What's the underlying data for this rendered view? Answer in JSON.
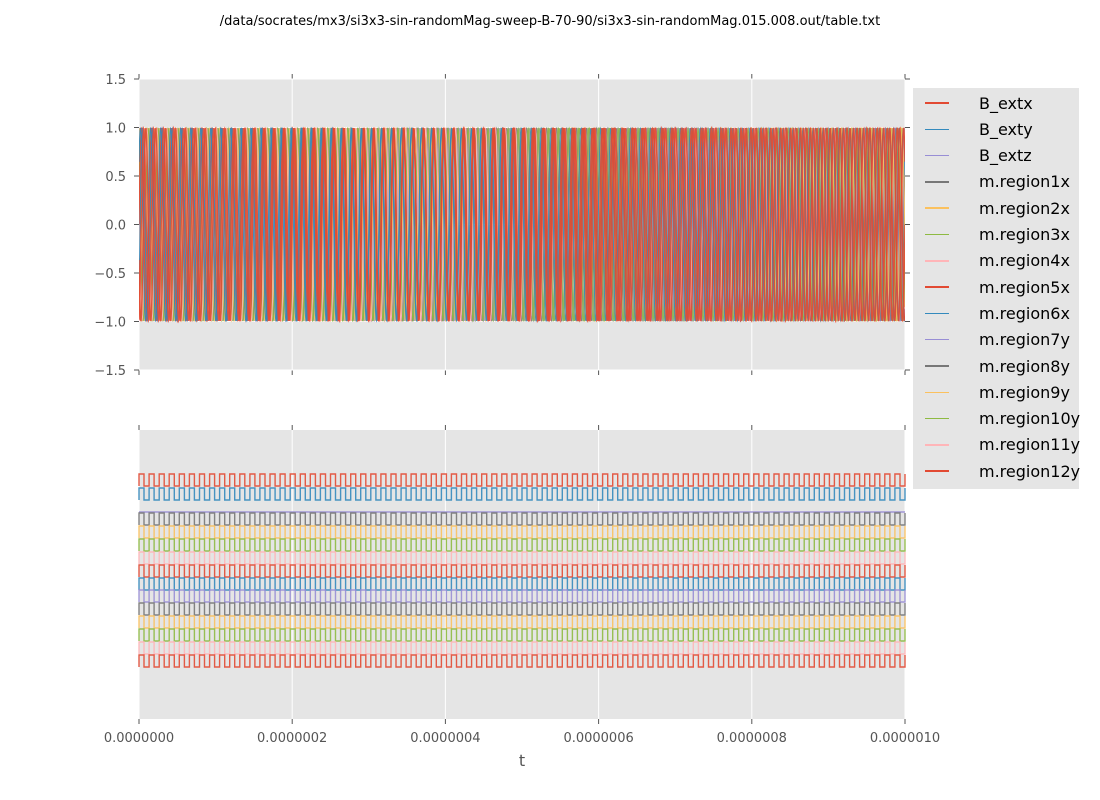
{
  "chart_data": [
    {
      "type": "line",
      "title": "/data/socrates/mx3/si3x3-sin-randomMag-sweep-B-70-90/si3x3-sin-randomMag.015.008.out/table.txt",
      "xlabel": "t",
      "ylabel": "",
      "xlim": [
        0,
        1e-06
      ],
      "ylim": [
        -1.5,
        1.5
      ],
      "yticks": [
        "1.5",
        "1.0",
        "0.5",
        "0.0",
        "−0.5",
        "−1.0",
        "−1.5"
      ],
      "ytick_values": [
        1.5,
        1.0,
        0.5,
        0.0,
        -0.5,
        -1.0,
        -1.5
      ],
      "grid": true,
      "legend_placement": "outside-right",
      "approx_cycles_over_range": 76,
      "amplitude": 1.0,
      "series": [
        {
          "name": "B_extx",
          "color": "#E24A33"
        },
        {
          "name": "B_exty",
          "color": "#348ABD"
        },
        {
          "name": "B_extz",
          "color": "#988ED5"
        },
        {
          "name": "m.region1x",
          "color": "#777777"
        },
        {
          "name": "m.region2x",
          "color": "#FBC15E"
        },
        {
          "name": "m.region3x",
          "color": "#8EBA42"
        },
        {
          "name": "m.region4x",
          "color": "#FFB5B8"
        },
        {
          "name": "m.region5x",
          "color": "#E24A33"
        },
        {
          "name": "m.region6x",
          "color": "#348ABD"
        },
        {
          "name": "m.region7y",
          "color": "#988ED5"
        },
        {
          "name": "m.region8y",
          "color": "#777777"
        },
        {
          "name": "m.region9y",
          "color": "#FBC15E"
        },
        {
          "name": "m.region10y",
          "color": "#8EBA42"
        },
        {
          "name": "m.region11y",
          "color": "#FFB5B8"
        },
        {
          "name": "m.region12y",
          "color": "#E24A33"
        }
      ]
    },
    {
      "type": "line",
      "xlabel": "t",
      "xlim": [
        0,
        1e-06
      ],
      "xticks": [
        "0.0000000",
        "0.0000002",
        "0.0000004",
        "0.0000006",
        "0.0000008",
        "0.0000010"
      ],
      "xtick_values": [
        0,
        2e-07,
        4e-07,
        6e-07,
        8e-07,
        1e-06
      ],
      "grid": true,
      "y_axis_labels_shown": false,
      "waveform": "square",
      "approx_cycles_over_range": 76,
      "trace_colors": [
        "#E24A33",
        "#348ABD",
        "#988ED5",
        "#777777",
        "#FBC15E",
        "#8EBA42",
        "#FFB5B8",
        "#E24A33",
        "#348ABD",
        "#988ED5",
        "#777777",
        "#FBC15E",
        "#8EBA42",
        "#FFB5B8",
        "#E24A33"
      ]
    }
  ]
}
